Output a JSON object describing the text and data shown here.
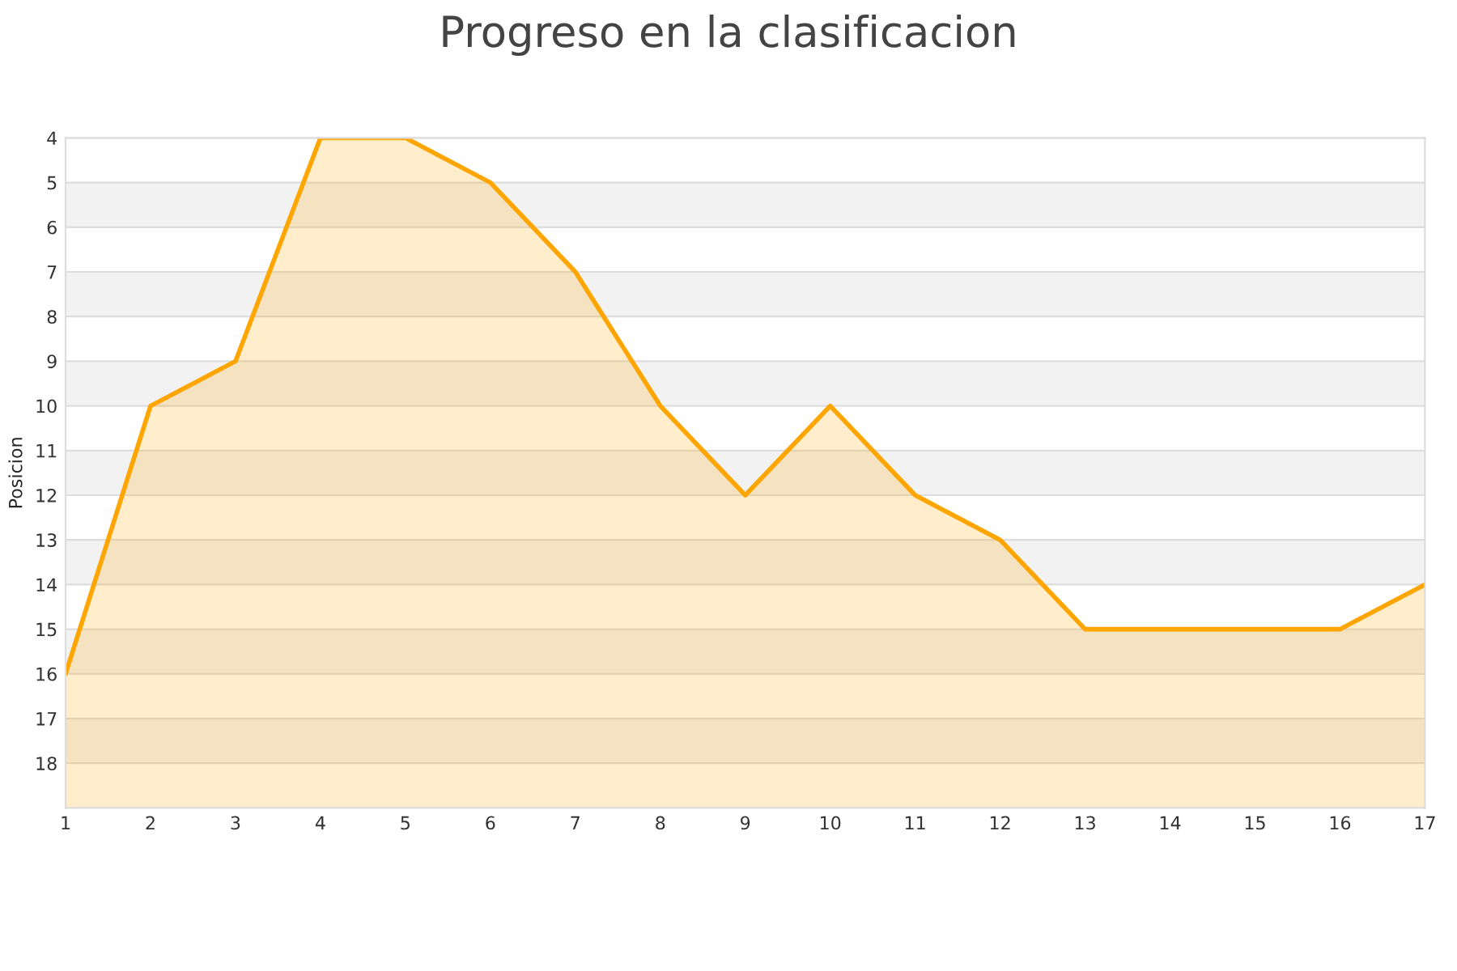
{
  "chart_data": {
    "type": "area",
    "title": "Progreso en la clasificacion",
    "ylabel": "Posicion",
    "x": [
      1,
      2,
      3,
      4,
      5,
      6,
      7,
      8,
      9,
      10,
      11,
      12,
      13,
      14,
      15,
      16,
      17
    ],
    "series": [
      {
        "color": "#ffa500",
        "values": [
          16,
          10,
          9,
          4,
          4,
          5,
          7,
          10,
          12,
          10,
          12,
          13,
          15,
          15,
          15,
          15,
          14
        ]
      }
    ],
    "xlim": [
      1,
      17
    ],
    "xticks": [
      1,
      2,
      3,
      4,
      5,
      6,
      7,
      8,
      9,
      10,
      11,
      12,
      13,
      14,
      15,
      16,
      17
    ],
    "ylim": [
      19,
      4
    ],
    "yticks": [
      4,
      5,
      6,
      7,
      8,
      9,
      10,
      11,
      12,
      13,
      14,
      15,
      16,
      17,
      18
    ],
    "bands": [
      {
        "axis": "y",
        "from": 5,
        "to": 6,
        "color": "#f2f2f2"
      },
      {
        "axis": "y",
        "from": 7,
        "to": 8,
        "color": "#f2f2f2"
      },
      {
        "axis": "y",
        "from": 9,
        "to": 10,
        "color": "#f2f2f2"
      },
      {
        "axis": "y",
        "from": 11,
        "to": 12,
        "color": "#f2f2f2"
      },
      {
        "axis": "y",
        "from": 13,
        "to": 14,
        "color": "#f2f2f2"
      },
      {
        "axis": "y",
        "from": 15,
        "to": 16,
        "color": "#f2f2f2"
      },
      {
        "axis": "y",
        "from": 17,
        "to": 18,
        "color": "#f2f2f2"
      }
    ],
    "grid": "y"
  }
}
